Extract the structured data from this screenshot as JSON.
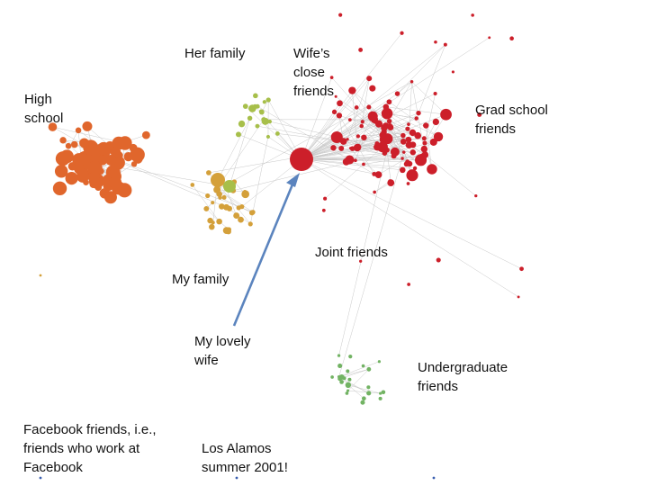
{
  "labels": {
    "high_school": "High\nschool",
    "her_family": "Her family",
    "wifes_close_friends": "Wife’s\nclose\nfriends",
    "grad_school_friends": "Grad school\nfriends",
    "my_family": "My family",
    "joint_friends": "Joint friends",
    "my_lovely_wife": "My lovely\nwife",
    "undergraduate_friends": "Undergraduate\nfriends",
    "facebook_friends": "Facebook friends, i.e.,\nfriends who work at\nFacebook",
    "los_alamos": "Los Alamos\nsummer 2001!"
  },
  "colors": {
    "high_school": "#e0662c",
    "my_family": "#d4a03a",
    "her_family": "#a7bf4a",
    "wife_and_friends": "#cc1f2a",
    "undergraduate": "#72b363",
    "isolated": "#3a5fb0",
    "arrow": "#5b84be",
    "edge": "#c8c8c8"
  }
}
